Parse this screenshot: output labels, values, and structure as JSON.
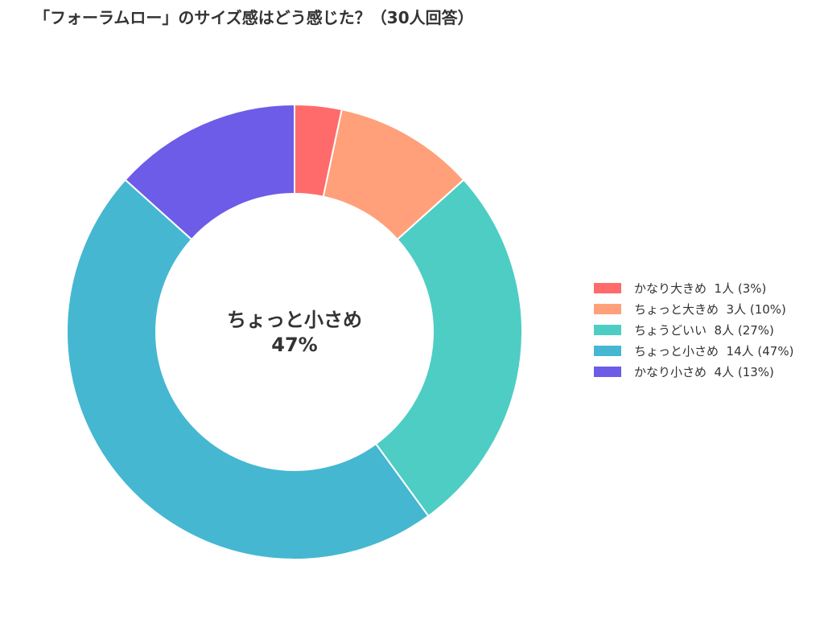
{
  "chart_data": {
    "type": "pie",
    "donut": true,
    "title": "「フォーラムロー」のサイズ感はどう感じた？（30人回答）",
    "categories": [
      "かなり大きめ",
      "ちょっと大きめ",
      "ちょうどいい",
      "ちょっと小さめ",
      "かなり小さめ"
    ],
    "values": [
      1,
      3,
      8,
      14,
      4
    ],
    "legend_labels": [
      "かなり大きめ  1人 (3%)",
      "ちょっと大きめ  3人 (10%)",
      "ちょうどいい  8人 (27%)",
      "ちょっと小さめ  14人 (47%)",
      "かなり小さめ  4人 (13%)"
    ],
    "colors": [
      "#ff6b6b",
      "#ffa07a",
      "#4ecdc4",
      "#45b7d1",
      "#6c5ce7"
    ],
    "center_label": {
      "line1": "ちょっと小さめ",
      "line2": "47%"
    },
    "legend_position": "right"
  }
}
